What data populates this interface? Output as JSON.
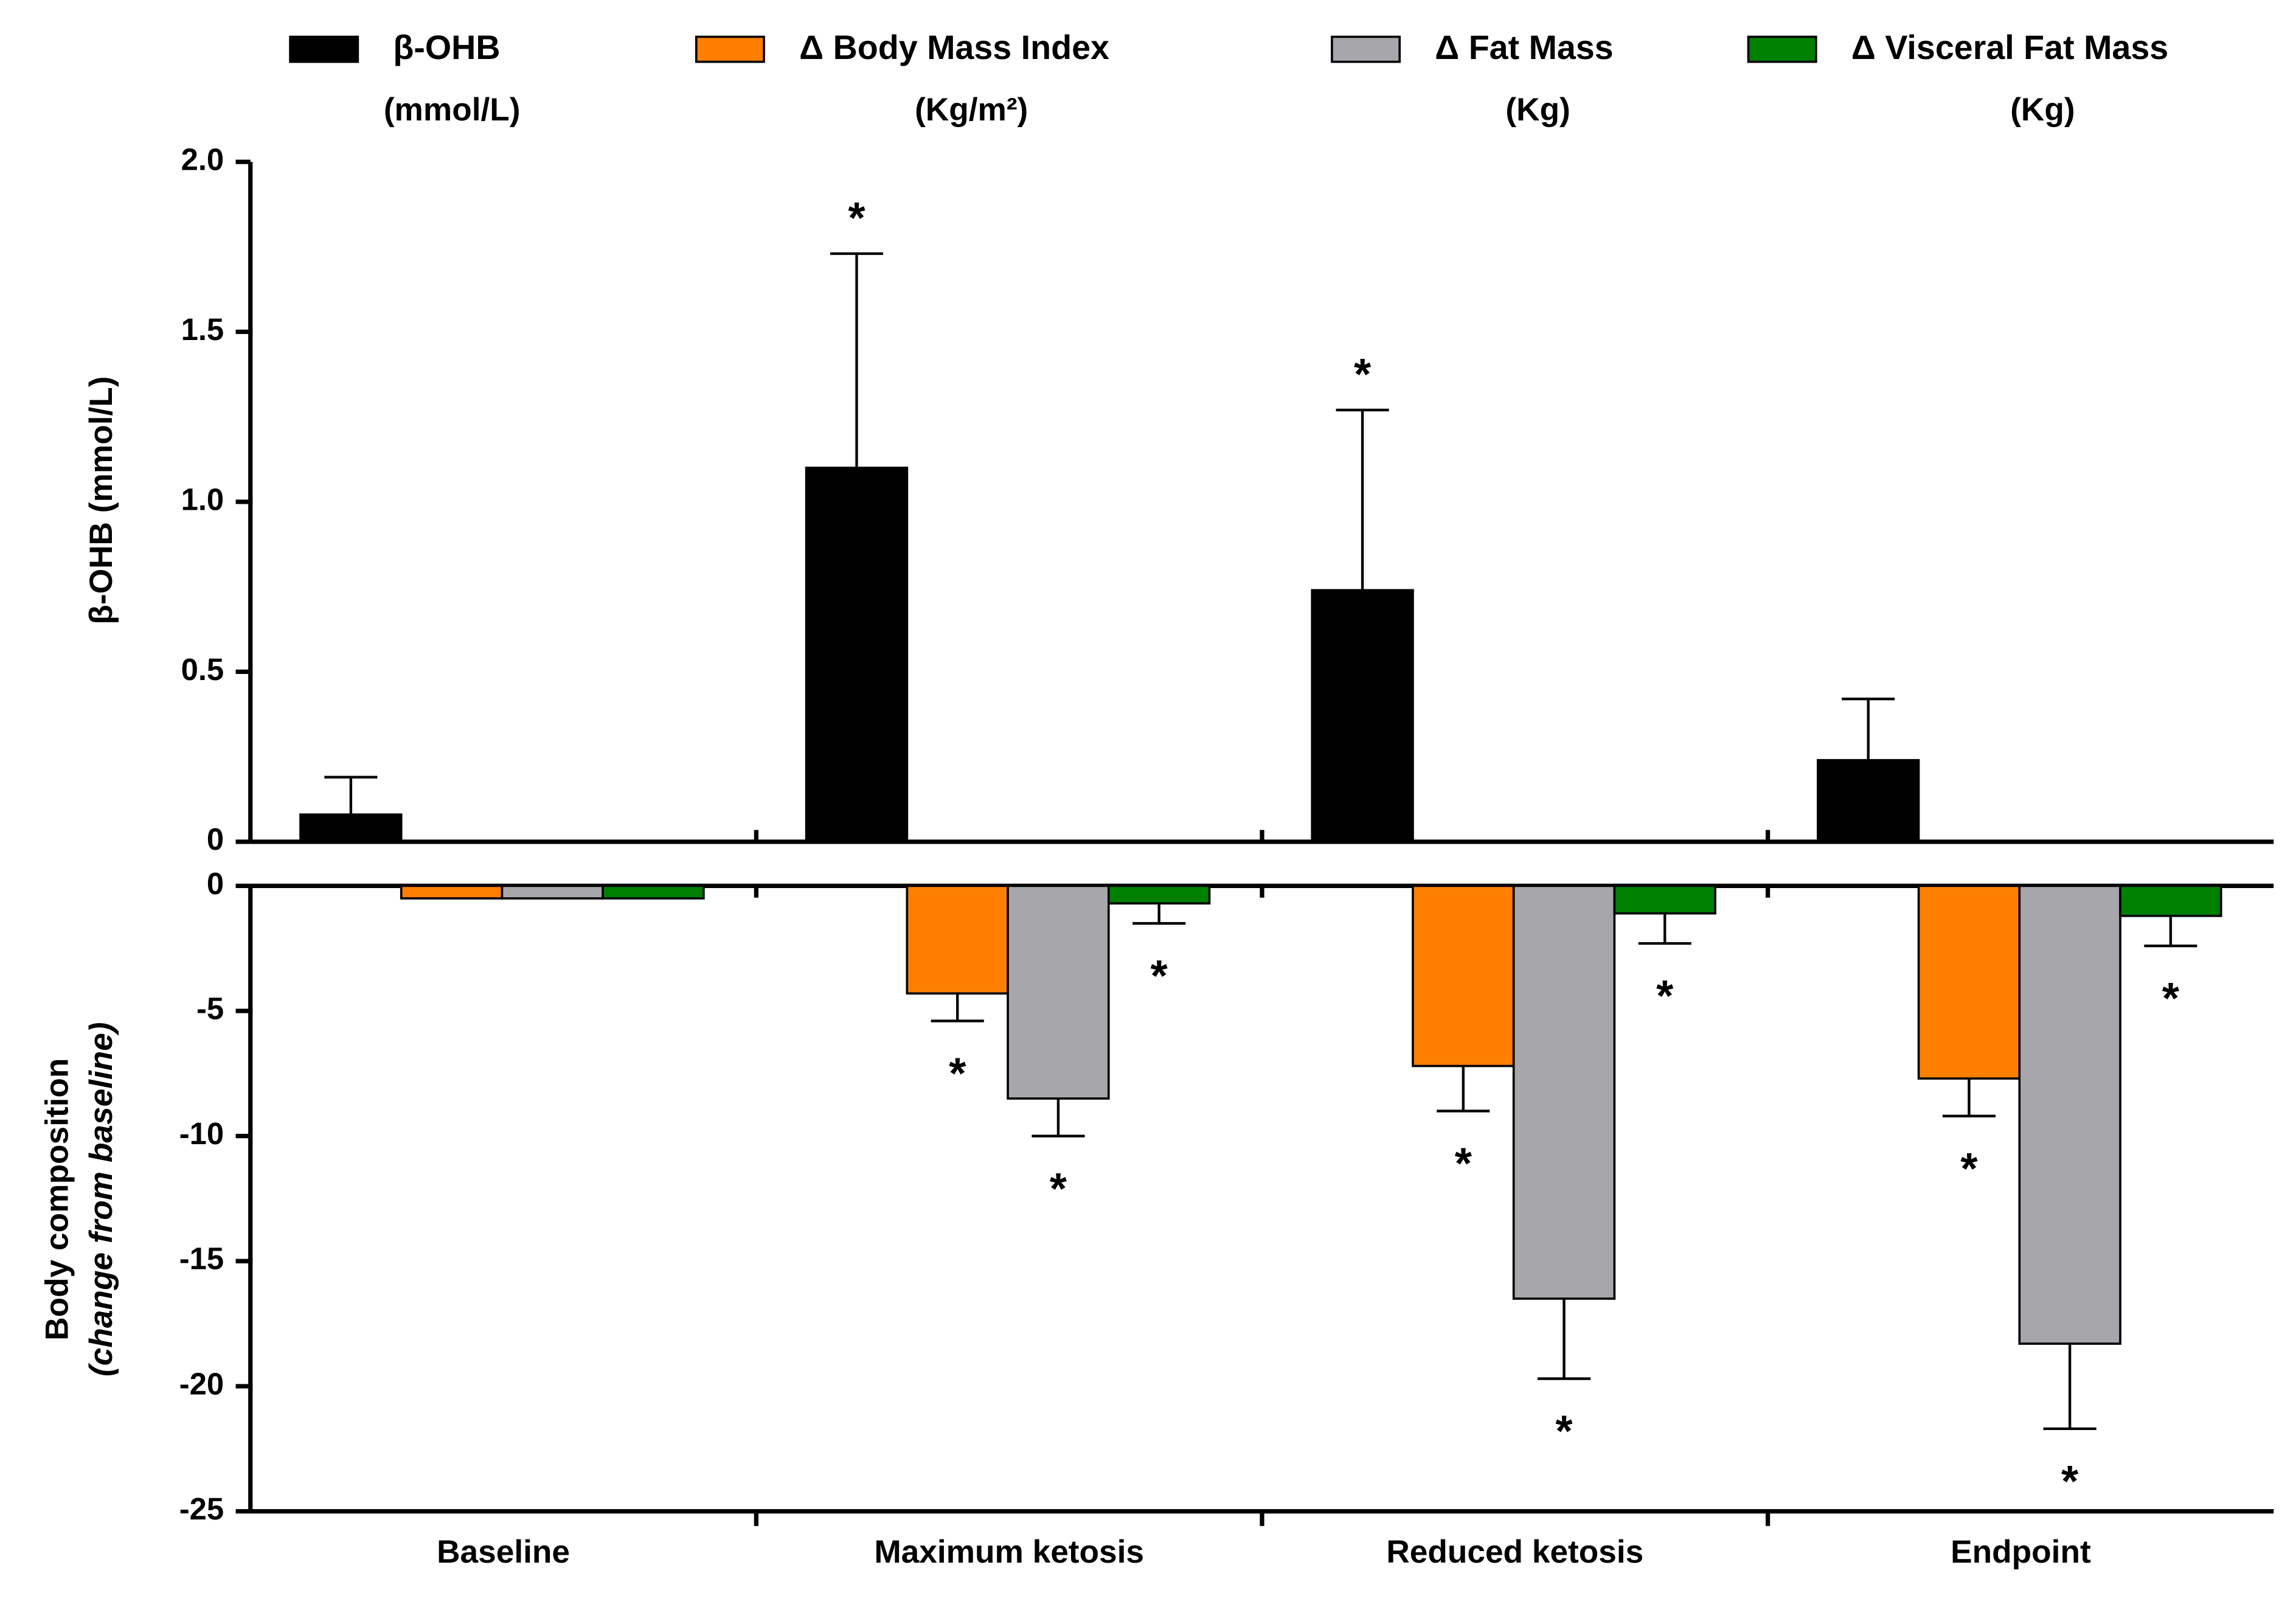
{
  "chart_data": [
    {
      "type": "bar",
      "ylabel": "β-OHB (mmol/L)",
      "series": [
        {
          "name": "β-OHB",
          "unit": "(mmol/L)",
          "color": "#000000",
          "values": [
            0.08,
            1.1,
            0.74,
            0.24
          ],
          "errors": [
            0.11,
            0.63,
            0.53,
            0.18
          ],
          "significance": [
            null,
            "*",
            "*",
            null
          ]
        }
      ],
      "ylim": [
        0,
        2
      ],
      "yticks": [
        0,
        0.5,
        {
          "value": 1,
          "label": "1.0"
        },
        1.5,
        {
          "value": 2,
          "label": "2.0"
        }
      ]
    },
    {
      "type": "bar",
      "ylabel": [
        "Body composition",
        "(change from baseline)"
      ],
      "categories": [
        "Baseline",
        "Maximum ketosis",
        "Reduced ketosis",
        "Endpoint"
      ],
      "series": [
        {
          "name": "Δ Body Mass Index",
          "unit": "(Kg/m²)",
          "color": "#ff8000",
          "values": [
            -0.5,
            -4.3,
            -7.2,
            -7.7
          ],
          "errors": [
            0,
            1.1,
            1.8,
            1.5
          ],
          "significance": [
            null,
            "*",
            "*",
            "*"
          ]
        },
        {
          "name": "Δ Fat Mass",
          "unit": "(Kg)",
          "color": "#a6a6ab",
          "values": [
            -0.5,
            -8.5,
            -16.5,
            -18.3
          ],
          "errors": [
            0,
            1.5,
            3.2,
            3.4
          ],
          "significance": [
            null,
            "*",
            "*",
            "*"
          ]
        },
        {
          "name": "Δ Visceral Fat Mass",
          "unit": "(Kg)",
          "color": "#008000",
          "values": [
            -0.5,
            -0.7,
            -1.1,
            -1.2
          ],
          "errors": [
            0,
            0.8,
            1.2,
            1.2
          ],
          "significance": [
            null,
            "*",
            "*",
            "*"
          ]
        }
      ],
      "ylim": [
        -25,
        0
      ],
      "yticks": [
        -25,
        -20,
        -15,
        -10,
        -5,
        0
      ]
    }
  ]
}
